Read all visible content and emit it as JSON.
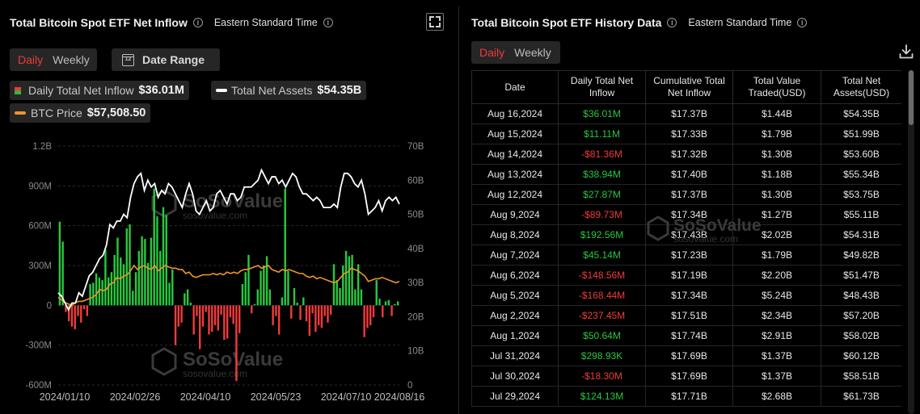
{
  "left": {
    "title": "Total Bitcoin Spot ETF Net Inflow",
    "timezone": "Eastern Standard Time",
    "tabs": [
      {
        "label": "Daily",
        "active": true
      },
      {
        "label": "Weekly",
        "active": false
      }
    ],
    "date_range_label": "Date Range",
    "calendar_day": "12",
    "legend": {
      "inflow_label": "Daily Total Net Inflow",
      "inflow_value": "$36.01M",
      "assets_label": "Total Net Assets",
      "assets_value": "$54.35B",
      "btc_label": "BTC Price",
      "btc_value": "$57,508.50"
    },
    "watermark": {
      "brand": "SoSoValue",
      "site": "sosovalue.com"
    }
  },
  "right": {
    "title": "Total Bitcoin Spot ETF History Data",
    "timezone": "Eastern Standard Time",
    "tabs": [
      {
        "label": "Daily",
        "active": true
      },
      {
        "label": "Weekly",
        "active": false
      }
    ],
    "columns": [
      "Date",
      "Daily Total Net Inflow",
      "Cumulative Total Net Inflow",
      "Total Value Traded(USD)",
      "Total Net Assets(USD)"
    ],
    "rows": [
      [
        "Aug 16,2024",
        "$36.01M",
        "$17.37B",
        "$1.44B",
        "$54.35B"
      ],
      [
        "Aug 15,2024",
        "$11.11M",
        "$17.33B",
        "$1.79B",
        "$51.99B"
      ],
      [
        "Aug 14,2024",
        "-$81.36M",
        "$17.32B",
        "$1.30B",
        "$53.60B"
      ],
      [
        "Aug 13,2024",
        "$38.94M",
        "$17.40B",
        "$1.18B",
        "$55.34B"
      ],
      [
        "Aug 12,2024",
        "$27.87M",
        "$17.37B",
        "$1.30B",
        "$53.75B"
      ],
      [
        "Aug 9,2024",
        "-$89.73M",
        "$17.34B",
        "$1.27B",
        "$55.11B"
      ],
      [
        "Aug 8,2024",
        "$192.56M",
        "$17.43B",
        "$2.02B",
        "$54.31B"
      ],
      [
        "Aug 7,2024",
        "$45.14M",
        "$17.23B",
        "$1.79B",
        "$49.82B"
      ],
      [
        "Aug 6,2024",
        "-$148.56M",
        "$17.19B",
        "$2.20B",
        "$51.47B"
      ],
      [
        "Aug 5,2024",
        "-$168.44M",
        "$17.34B",
        "$5.24B",
        "$48.43B"
      ],
      [
        "Aug 2,2024",
        "-$237.45M",
        "$17.51B",
        "$2.34B",
        "$57.20B"
      ],
      [
        "Aug 1,2024",
        "$50.64M",
        "$17.74B",
        "$2.91B",
        "$58.02B"
      ],
      [
        "Jul 31,2024",
        "$298.93K",
        "$17.69B",
        "$1.37B",
        "$60.12B"
      ],
      [
        "Jul 30,2024",
        "-$18.30M",
        "$17.69B",
        "$1.37B",
        "$58.51B"
      ],
      [
        "Jul 29,2024",
        "$124.13M",
        "$17.71B",
        "$2.68B",
        "$61.73B"
      ]
    ]
  },
  "colors": {
    "positive": "#27c93f",
    "negative": "#ef3b3b",
    "btc_line": "#f0952b",
    "assets_line": "#ffffff",
    "accent": "#ef3b3b"
  },
  "icons": [
    "info-icon",
    "fullscreen-icon",
    "calendar-icon",
    "download-icon",
    "sosovalue-logo-icon"
  ],
  "chart_data": {
    "type": "bar",
    "x_ticks": [
      "2024/01/10",
      "2024/02/26",
      "2024/04/10",
      "2024/05/23",
      "2024/07/10",
      "2024/08/16"
    ],
    "y_left_ticks": [
      "1.2B",
      "900M",
      "600M",
      "300M",
      "0",
      "-300M",
      "-600M"
    ],
    "y_left_range": [
      -600,
      1200
    ],
    "y_right_ticks": [
      "70B",
      "60B",
      "50B",
      "40B",
      "30B",
      "20B",
      "10B",
      "0"
    ],
    "y_right_range": [
      0,
      70
    ],
    "series": [
      {
        "name": "Daily Total Net Inflow",
        "unit": "M",
        "values": [
          630,
          480,
          -50,
          -120,
          -160,
          -180,
          -80,
          -130,
          -30,
          -80,
          160,
          170,
          240,
          210,
          190,
          420,
          210,
          250,
          380,
          510,
          360,
          310,
          580,
          610,
          110,
          250,
          410,
          520,
          500,
          320,
          510,
          880,
          670,
          410,
          740,
          680,
          170,
          270,
          -300,
          -160,
          -130,
          90,
          120,
          20,
          -220,
          -80,
          -330,
          -160,
          -50,
          -220,
          -200,
          -150,
          -190,
          -70,
          -260,
          -250,
          -90,
          -140,
          -570,
          -210,
          160,
          250,
          380,
          -60,
          10,
          120,
          260,
          300,
          370,
          120,
          -150,
          -80,
          -220,
          60,
          880,
          260,
          -100,
          130,
          20,
          -110,
          60,
          -120,
          -230,
          -60,
          -200,
          -150,
          -170,
          -80,
          -130,
          -70,
          310,
          190,
          130,
          300,
          410,
          370,
          380,
          120,
          310,
          120,
          -240,
          -170,
          -150,
          -90,
          190,
          50,
          -90,
          30,
          40,
          -80,
          10,
          30
        ]
      },
      {
        "name": "Total Net Assets",
        "unit": "B",
        "values": [
          27,
          26,
          24,
          22,
          24,
          24,
          27,
          26,
          29,
          32,
          33,
          35,
          37,
          38,
          41,
          47,
          46,
          48,
          48,
          50,
          49,
          55,
          59,
          61,
          62,
          57,
          60,
          58,
          59,
          55,
          57,
          56,
          59,
          58,
          56,
          54,
          52,
          56,
          59,
          56,
          51,
          50,
          52,
          54,
          51,
          52,
          56,
          57,
          55,
          53,
          56,
          56,
          54,
          55,
          58,
          58,
          58,
          59,
          60,
          63,
          61,
          59,
          61,
          61,
          59,
          60,
          58,
          60,
          62,
          61,
          58,
          56,
          56,
          55,
          54,
          55,
          54,
          52,
          52,
          52,
          53,
          52,
          58,
          62,
          62,
          61,
          59,
          58,
          60,
          56,
          50,
          51,
          52,
          54,
          51,
          54,
          55,
          54,
          55,
          53
        ]
      },
      {
        "name": "BTC Price",
        "unit": "K",
        "values": [
          46,
          44,
          42,
          41,
          40,
          42,
          43,
          43,
          44,
          45,
          46,
          48,
          52,
          51,
          52,
          56,
          57,
          61,
          60,
          62,
          63,
          66,
          70,
          67,
          69,
          70,
          68,
          67,
          70,
          66,
          68,
          70,
          69,
          68,
          68,
          67,
          67,
          64,
          65,
          62,
          61,
          62,
          63,
          63,
          63,
          64,
          63,
          64,
          63,
          65,
          64,
          65,
          64,
          66,
          67,
          67,
          68,
          69,
          70,
          68,
          69,
          70,
          67,
          66,
          65,
          67,
          66,
          67,
          66,
          65,
          64,
          64,
          62,
          61,
          62,
          60,
          61,
          60,
          59,
          58,
          57,
          58,
          61,
          64,
          65,
          68,
          67,
          66,
          64,
          62,
          58,
          59,
          60,
          60,
          61,
          60,
          59,
          58,
          57,
          58
        ]
      }
    ]
  }
}
